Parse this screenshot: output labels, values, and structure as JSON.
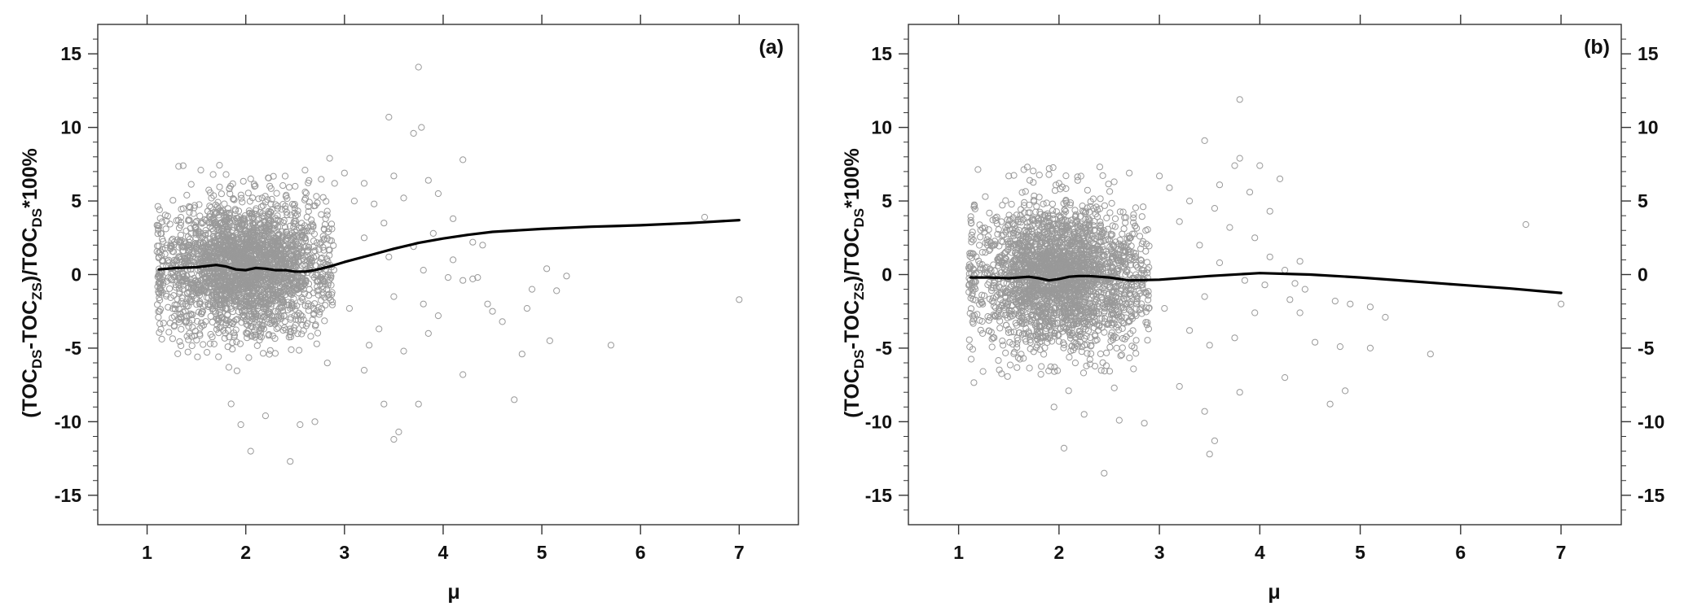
{
  "chart_data": [
    {
      "type": "scatter",
      "panel_label": "(a)",
      "xlabel": "μ",
      "ylabel": {
        "base": "(TOC",
        "sub1": "DS",
        "mid1": "-TOC",
        "sub2": "ZS",
        "mid2": ")/TOC",
        "sub3": "DS",
        "tail": "*100%"
      },
      "xlim": [
        0.5,
        7.6
      ],
      "ylim": [
        -17,
        17
      ],
      "x_ticks": [
        1,
        2,
        3,
        4,
        5,
        6,
        7
      ],
      "y_ticks": [
        -15,
        -10,
        -5,
        0,
        5,
        10,
        15
      ],
      "y_axis_side": "left",
      "grid": false,
      "point_color": "#999999",
      "line_color": "#000000",
      "cluster": {
        "x_min": 1.1,
        "x_max": 2.9,
        "center_x": 2.0,
        "center_y": 0.5,
        "sd_y": 2.3,
        "approx_points": 2600
      },
      "sparse_points": [
        [
          3.75,
          14.1
        ],
        [
          3.45,
          10.7
        ],
        [
          3.78,
          10.0
        ],
        [
          3.7,
          9.6
        ],
        [
          2.85,
          7.9
        ],
        [
          4.2,
          7.8
        ],
        [
          3.0,
          6.9
        ],
        [
          3.2,
          6.2
        ],
        [
          3.5,
          6.7
        ],
        [
          3.85,
          6.4
        ],
        [
          3.95,
          5.5
        ],
        [
          3.1,
          5.0
        ],
        [
          3.6,
          5.2
        ],
        [
          3.3,
          4.8
        ],
        [
          4.1,
          3.8
        ],
        [
          3.4,
          3.5
        ],
        [
          3.9,
          2.8
        ],
        [
          4.3,
          2.2
        ],
        [
          3.2,
          2.5
        ],
        [
          3.7,
          1.9
        ],
        [
          4.1,
          1.0
        ],
        [
          3.45,
          1.2
        ],
        [
          3.8,
          0.3
        ],
        [
          4.05,
          -0.2
        ],
        [
          4.2,
          -0.4
        ],
        [
          4.3,
          -0.3
        ],
        [
          3.5,
          -1.5
        ],
        [
          3.8,
          -2.0
        ],
        [
          3.05,
          -2.3
        ],
        [
          3.95,
          -2.8
        ],
        [
          4.5,
          -2.5
        ],
        [
          4.6,
          -3.2
        ],
        [
          3.35,
          -3.7
        ],
        [
          3.85,
          -4.0
        ],
        [
          3.25,
          -4.8
        ],
        [
          3.6,
          -5.2
        ],
        [
          3.2,
          -6.5
        ],
        [
          4.2,
          -6.8
        ],
        [
          3.4,
          -8.8
        ],
        [
          3.75,
          -8.8
        ],
        [
          3.55,
          -10.7
        ],
        [
          3.5,
          -11.2
        ],
        [
          4.4,
          2.0
        ],
        [
          4.35,
          -0.2
        ],
        [
          4.45,
          -2.0
        ],
        [
          4.9,
          -1.0
        ],
        [
          4.85,
          -2.3
        ],
        [
          5.05,
          0.4
        ],
        [
          5.15,
          -1.1
        ],
        [
          5.25,
          -0.1
        ],
        [
          4.8,
          -5.4
        ],
        [
          5.08,
          -4.5
        ],
        [
          5.7,
          -4.8
        ],
        [
          4.72,
          -8.5
        ],
        [
          6.65,
          3.9
        ],
        [
          7.0,
          -1.7
        ],
        [
          2.05,
          -12.0
        ],
        [
          2.45,
          -12.7
        ],
        [
          1.95,
          -10.2
        ],
        [
          2.2,
          -9.6
        ],
        [
          2.7,
          -10.0
        ],
        [
          2.55,
          -10.2
        ],
        [
          1.8,
          6.8
        ],
        [
          2.05,
          6.5
        ],
        [
          2.6,
          7.1
        ],
        [
          2.5,
          6.0
        ],
        [
          2.9,
          6.2
        ]
      ],
      "smooth_line": {
        "x": [
          1.12,
          1.3,
          1.5,
          1.7,
          1.8,
          1.9,
          2.0,
          2.1,
          2.2,
          2.3,
          2.4,
          2.5,
          2.6,
          2.7,
          2.85,
          3.0,
          3.25,
          3.5,
          3.75,
          4.0,
          4.25,
          4.5,
          5.0,
          5.5,
          6.0,
          6.5,
          7.0
        ],
        "y": [
          0.35,
          0.45,
          0.5,
          0.65,
          0.55,
          0.35,
          0.3,
          0.45,
          0.4,
          0.3,
          0.3,
          0.2,
          0.2,
          0.3,
          0.55,
          0.85,
          1.3,
          1.75,
          2.15,
          2.45,
          2.7,
          2.9,
          3.1,
          3.25,
          3.35,
          3.5,
          3.7
        ]
      }
    },
    {
      "type": "scatter",
      "panel_label": "(b)",
      "xlabel": "μ",
      "ylabel": {
        "base": "(TOC",
        "sub1": "DS",
        "mid1": "-TOC",
        "sub2": "ZS",
        "mid2": ")/TOC",
        "sub3": "DS",
        "tail": "*100%"
      },
      "xlim": [
        0.5,
        7.6
      ],
      "ylim": [
        -17,
        17
      ],
      "x_ticks": [
        1,
        2,
        3,
        4,
        5,
        6,
        7
      ],
      "y_ticks": [
        -15,
        -10,
        -5,
        0,
        5,
        10,
        15
      ],
      "y_axis_side": "both",
      "grid": false,
      "point_color": "#999999",
      "line_color": "#000000",
      "cluster": {
        "x_min": 1.1,
        "x_max": 2.9,
        "center_x": 2.0,
        "center_y": -0.2,
        "sd_y": 2.4,
        "approx_points": 2600
      },
      "sparse_points": [
        [
          3.8,
          11.9
        ],
        [
          3.45,
          9.1
        ],
        [
          3.8,
          7.9
        ],
        [
          3.75,
          7.4
        ],
        [
          4.0,
          7.4
        ],
        [
          3.6,
          6.1
        ],
        [
          3.0,
          6.7
        ],
        [
          3.1,
          5.9
        ],
        [
          4.2,
          6.5
        ],
        [
          3.9,
          5.6
        ],
        [
          3.3,
          5.0
        ],
        [
          3.55,
          4.5
        ],
        [
          4.1,
          4.3
        ],
        [
          3.2,
          3.6
        ],
        [
          3.7,
          3.2
        ],
        [
          3.95,
          2.5
        ],
        [
          3.4,
          2.0
        ],
        [
          4.1,
          1.2
        ],
        [
          3.6,
          0.8
        ],
        [
          4.25,
          0.3
        ],
        [
          3.85,
          -0.4
        ],
        [
          4.35,
          -0.6
        ],
        [
          3.45,
          -1.5
        ],
        [
          3.05,
          -2.3
        ],
        [
          4.3,
          -1.7
        ],
        [
          4.4,
          -2.6
        ],
        [
          3.95,
          -2.6
        ],
        [
          3.3,
          -3.8
        ],
        [
          3.75,
          -4.3
        ],
        [
          3.5,
          -4.8
        ],
        [
          3.2,
          -7.6
        ],
        [
          4.25,
          -7.0
        ],
        [
          3.45,
          -9.3
        ],
        [
          3.8,
          -8.0
        ],
        [
          3.55,
          -11.3
        ],
        [
          3.5,
          -12.2
        ],
        [
          4.45,
          -1.0
        ],
        [
          4.4,
          0.9
        ],
        [
          4.05,
          -0.7
        ],
        [
          4.75,
          -1.8
        ],
        [
          4.9,
          -2.0
        ],
        [
          5.1,
          -2.2
        ],
        [
          5.25,
          -2.9
        ],
        [
          4.55,
          -4.6
        ],
        [
          4.8,
          -4.9
        ],
        [
          5.1,
          -5.0
        ],
        [
          5.7,
          -5.4
        ],
        [
          4.7,
          -8.8
        ],
        [
          4.85,
          -7.9
        ],
        [
          6.65,
          3.4
        ],
        [
          7.0,
          -2.0
        ],
        [
          2.45,
          -13.5
        ],
        [
          2.05,
          -11.8
        ],
        [
          1.95,
          -9.0
        ],
        [
          2.25,
          -9.5
        ],
        [
          2.6,
          -9.9
        ],
        [
          2.85,
          -10.1
        ],
        [
          1.5,
          6.7
        ],
        [
          2.0,
          6.2
        ],
        [
          2.7,
          6.9
        ],
        [
          2.55,
          6.3
        ]
      ],
      "smooth_line": {
        "x": [
          1.12,
          1.3,
          1.5,
          1.7,
          1.8,
          1.9,
          2.0,
          2.1,
          2.2,
          2.3,
          2.4,
          2.5,
          2.6,
          2.7,
          3.0,
          3.5,
          4.0,
          4.5,
          5.0,
          5.5,
          6.0,
          6.5,
          7.0
        ],
        "y": [
          -0.2,
          -0.2,
          -0.25,
          -0.15,
          -0.25,
          -0.4,
          -0.3,
          -0.15,
          -0.1,
          -0.1,
          -0.15,
          -0.2,
          -0.3,
          -0.4,
          -0.35,
          -0.1,
          0.1,
          0.0,
          -0.2,
          -0.45,
          -0.7,
          -0.95,
          -1.25
        ]
      }
    }
  ]
}
